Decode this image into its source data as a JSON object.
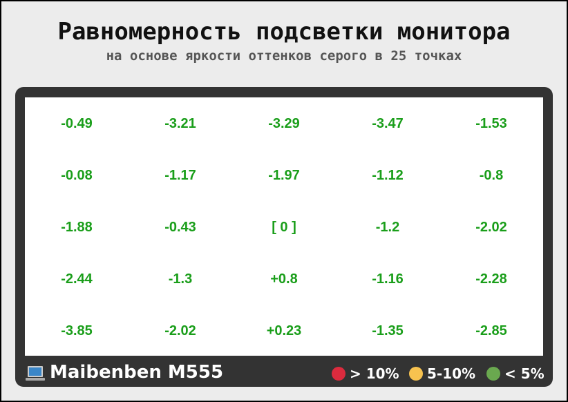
{
  "header": {
    "title": "Равномерность подсветки монитора",
    "subtitle": "на основе яркости оттенков серого в 25 точках"
  },
  "grid": {
    "rows": [
      [
        "-0.49",
        "-3.21",
        "-3.29",
        "-3.47",
        "-1.53"
      ],
      [
        "-0.08",
        "-1.17",
        "-1.97",
        "-1.12",
        "-0.8"
      ],
      [
        "-1.88",
        "-0.43",
        "[ 0 ]",
        "-1.2",
        "-2.02"
      ],
      [
        "-2.44",
        "-1.3",
        "+0.8",
        "-1.16",
        "-2.28"
      ],
      [
        "-3.85",
        "-2.02",
        "+0.23",
        "-1.35",
        "-2.85"
      ]
    ]
  },
  "footer": {
    "device": "Maibenben M555",
    "legend": [
      {
        "label": "> 10%",
        "color": "#dc2b3e"
      },
      {
        "label": "5-10%",
        "color": "#f7c24f"
      },
      {
        "label": "< 5%",
        "color": "#6aa84f"
      }
    ]
  }
}
